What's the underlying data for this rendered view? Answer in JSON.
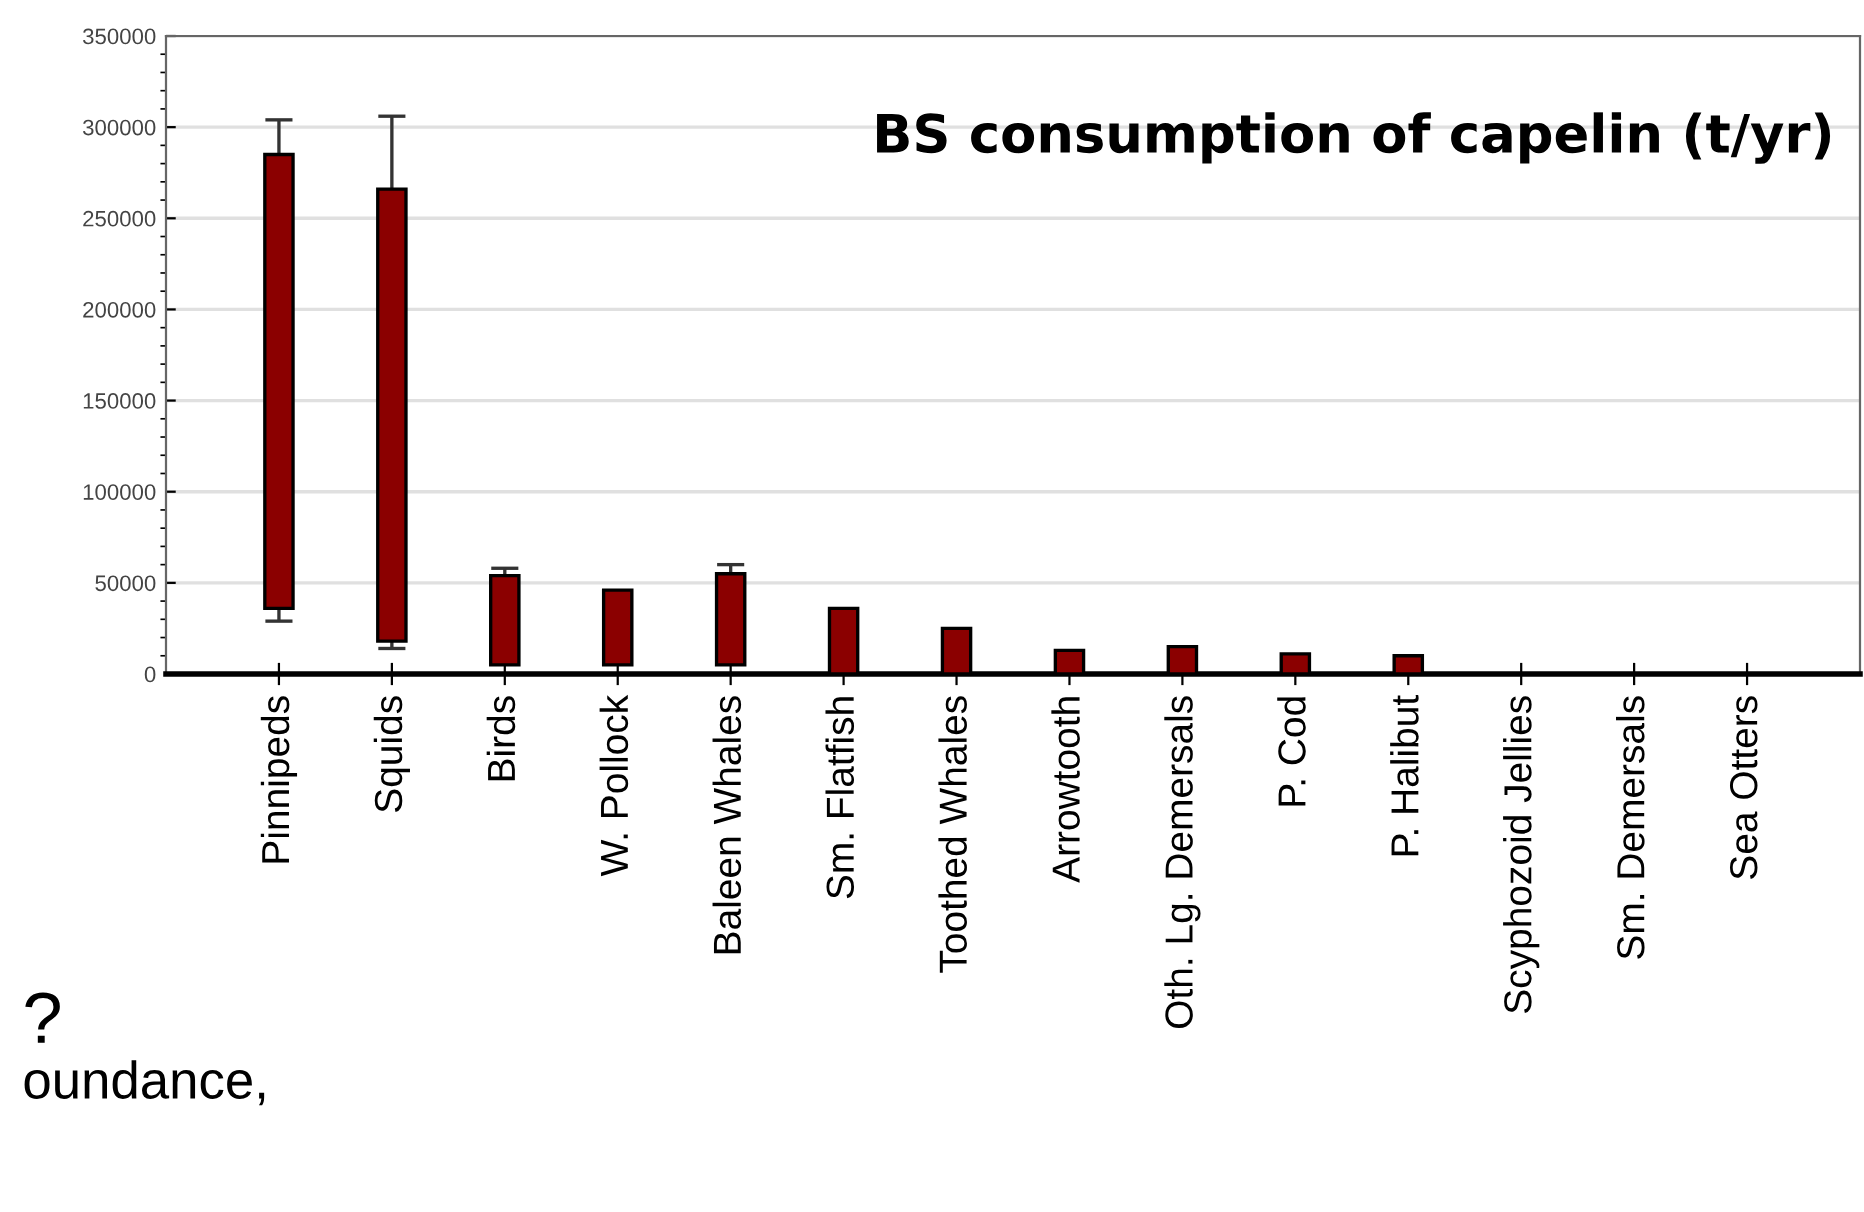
{
  "chart_data": {
    "type": "bar",
    "title": "BS consumption of capelin (t/yr)",
    "categories": [
      "Pinnipeds",
      "Squids",
      "Birds",
      "W. Pollock",
      "Baleen Whales",
      "Sm. Flatfish",
      "Toothed Whales",
      "Arrowtooth",
      "Oth. Lg. Demersals",
      "P. Cod",
      "P. Halibut",
      "Scyphozoid Jellies",
      "Sm. Demersals",
      "Sea Otters"
    ],
    "base": [
      36000,
      18000,
      5000,
      5000,
      5000,
      0,
      0,
      0,
      0,
      0,
      0,
      null,
      null,
      null
    ],
    "values": [
      249000,
      248000,
      49000,
      41000,
      50000,
      36000,
      25000,
      13000,
      15000,
      11000,
      10000,
      null,
      null,
      null
    ],
    "errors": [
      [
        29000,
        304000
      ],
      [
        14000,
        306000
      ],
      [
        54000,
        58000
      ],
      null,
      [
        55000,
        60000
      ],
      null,
      null,
      null,
      null,
      null,
      null,
      null,
      null,
      null
    ],
    "color": "#8b0000",
    "ylim": [
      0,
      350000
    ],
    "yticks": [
      0,
      50000,
      100000,
      150000,
      200000,
      250000,
      300000,
      350000
    ],
    "grid": "y",
    "annotations": [
      "?",
      "oundance,"
    ]
  }
}
